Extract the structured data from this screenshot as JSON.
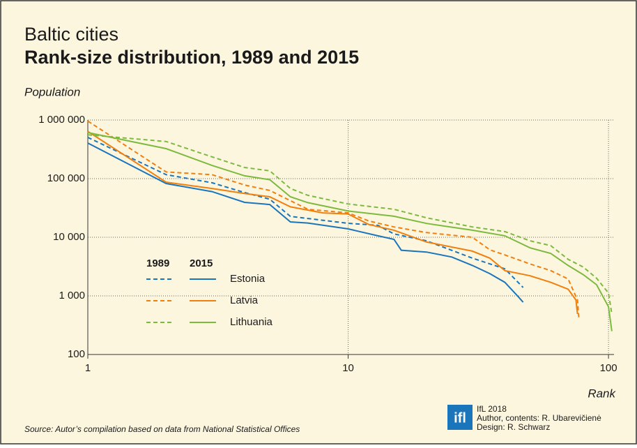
{
  "chart_data": {
    "type": "line",
    "title": "Baltic cities",
    "subtitle": "Rank-size distribution, 1989 and 2015",
    "y_label": "Population",
    "x_label": "Rank",
    "log_x": true,
    "log_y": true,
    "grid": true,
    "xlim": [
      1,
      105
    ],
    "xticks": [
      1,
      10,
      100
    ],
    "ylim": [
      100,
      1000000
    ],
    "yticks": [
      {
        "value": 1000000,
        "label": "1 000 000"
      },
      {
        "value": 100000,
        "label": "100 000"
      },
      {
        "value": 10000,
        "label": "10 000"
      },
      {
        "value": 1000,
        "label": "1 000"
      },
      100
    ],
    "legend_headers": [
      "1989",
      "2015"
    ],
    "series": [
      {
        "name": "Estonia",
        "color": "#1a75bb",
        "lines": [
          {
            "dashed": true,
            "x": [
              1,
              2,
              3,
              4,
              5,
              6,
              10,
              13,
              15,
              20,
              30,
              40,
              47
            ],
            "values": [
              505000,
              117000,
              85000,
              58000,
              44500,
              22700,
              17300,
              16000,
              11400,
              8700,
              4400,
              2900,
              1390
            ]
          },
          {
            "dashed": false,
            "x": [
              1,
              2,
              3,
              4,
              5,
              6,
              7,
              10,
              13,
              15,
              16,
              20,
              25,
              30,
              35,
              40,
              45,
              47
            ],
            "values": [
              405000,
              82600,
              60000,
              39400,
              36200,
              18300,
              17500,
              13900,
              10600,
              9200,
              6000,
              5600,
              4600,
              3300,
              2400,
              1700,
              970,
              780
            ]
          }
        ]
      },
      {
        "name": "Latvia",
        "color": "#f07f0e",
        "lines": [
          {
            "dashed": true,
            "x": [
              1,
              2,
              3,
              4,
              5,
              6,
              7,
              10,
              12,
              15,
              20,
              30,
              35,
              40,
              50,
              60,
              70,
              76,
              77
            ],
            "values": [
              960000,
              130000,
              117000,
              78000,
              63000,
              42000,
              30000,
              26000,
              19000,
              15000,
              12000,
              10000,
              6100,
              5000,
              3500,
              2700,
              1940,
              850,
              390
            ]
          },
          {
            "dashed": false,
            "x": [
              1,
              2,
              3,
              4,
              5,
              6,
              8,
              10,
              12,
              15,
              20,
              30,
              35,
              40,
              50,
              60,
              70,
              75,
              76
            ],
            "values": [
              640000,
              87000,
              68000,
              56000,
              49000,
              33000,
              26000,
              25000,
              16500,
              13200,
              8300,
              5800,
              4400,
              2700,
              2200,
              1700,
              1300,
              850,
              490
            ]
          }
        ]
      },
      {
        "name": "Lithuania",
        "color": "#7cba3d",
        "lines": [
          {
            "dashed": true,
            "x": [
              1,
              2,
              3,
              4,
              5,
              6,
              7,
              10,
              15,
              20,
              30,
              40,
              50,
              60,
              70,
              80,
              90,
              100,
              103
            ],
            "values": [
              560000,
              430000,
              235000,
              155000,
              136000,
              68000,
              52000,
              37000,
              30000,
              21500,
              15000,
              12500,
              8700,
              7200,
              4200,
              3100,
              2000,
              1120,
              490
            ]
          },
          {
            "dashed": false,
            "x": [
              1,
              2,
              3,
              4,
              5,
              6,
              7,
              10,
              15,
              20,
              30,
              40,
              50,
              60,
              70,
              80,
              90,
              100,
              103
            ],
            "values": [
              610000,
              325000,
              168000,
              112000,
              96000,
              49000,
              39000,
              28000,
              22800,
              17200,
              13200,
              10600,
              6600,
              5300,
              3300,
              2300,
              1550,
              650,
              250
            ]
          }
        ]
      }
    ],
    "source": "Source: Autor’s compilation based on data from National Statistical Offices",
    "logo": "ifl",
    "credits": [
      "IfL 2018",
      "Author, contents: R. Ubarevičienė",
      "Design: R. Schwarz"
    ]
  }
}
